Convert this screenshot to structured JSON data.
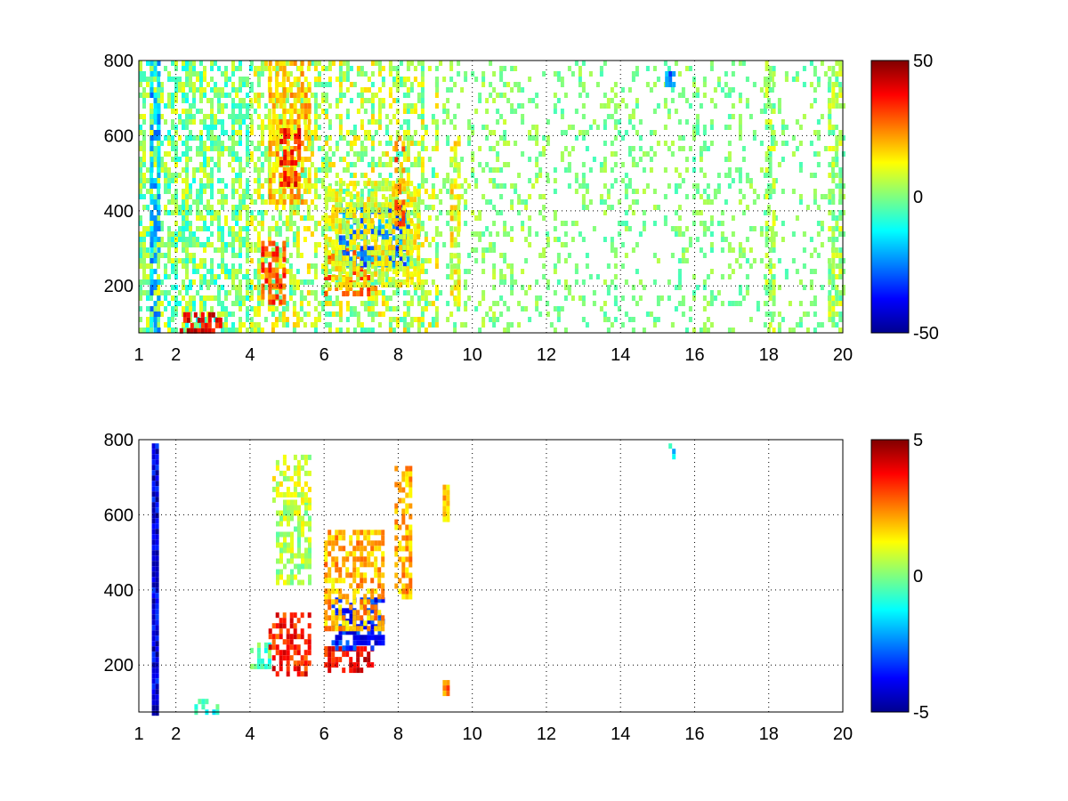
{
  "chart_data": [
    {
      "type": "heatmap",
      "title": "",
      "xlabel": "",
      "ylabel": "",
      "xlim": [
        1,
        20
      ],
      "ylim": [
        75,
        800
      ],
      "xticks": [
        1,
        2,
        4,
        6,
        8,
        10,
        12,
        14,
        16,
        18,
        20
      ],
      "yticks": [
        200,
        400,
        600,
        800
      ],
      "grid": true,
      "colormap": "jet",
      "clim": [
        -50,
        50
      ],
      "colorbar": {
        "ticks": [
          50,
          0,
          -50
        ],
        "location": "right"
      },
      "features": [
        {
          "x": [
            2.1,
            3.2
          ],
          "y": [
            75,
            130
          ],
          "value": 40
        },
        {
          "x": [
            4.3,
            4.9
          ],
          "y": [
            160,
            320
          ],
          "value": 30
        },
        {
          "x": [
            4.5,
            5.6
          ],
          "y": [
            420,
            800
          ],
          "value": 18
        },
        {
          "x": [
            4.8,
            5.3
          ],
          "y": [
            470,
            620
          ],
          "value": 35
        },
        {
          "x": [
            6.0,
            7.4
          ],
          "y": [
            180,
            300
          ],
          "value": 28
        },
        {
          "x": [
            6.4,
            8.3
          ],
          "y": [
            250,
            420
          ],
          "value": -25
        },
        {
          "x": [
            6.0,
            8.5
          ],
          "y": [
            200,
            480
          ],
          "value": 10
        },
        {
          "x": [
            7.9,
            8.1
          ],
          "y": [
            350,
            600
          ],
          "value": 25
        },
        {
          "x": [
            9.4,
            9.6
          ],
          "y": [
            150,
            600
          ],
          "value": 12
        },
        {
          "x": [
            1.3,
            1.5
          ],
          "y": [
            75,
            800
          ],
          "value": -20
        },
        {
          "x": [
            15.2,
            15.4
          ],
          "y": [
            730,
            800
          ],
          "value": -25
        },
        {
          "x": [
            17.9,
            18.1
          ],
          "y": [
            75,
            800
          ],
          "value": 3
        },
        {
          "x": [
            19.6,
            19.9
          ],
          "y": [
            75,
            800
          ],
          "value": 3
        }
      ],
      "sparse_regions": [
        {
          "x": [
            1,
            4
          ],
          "density": 0.55,
          "value_range": [
            -12,
            12
          ]
        },
        {
          "x": [
            4,
            9
          ],
          "density": 0.45,
          "value_range": [
            -8,
            18
          ]
        },
        {
          "x": [
            9,
            12
          ],
          "density": 0.22,
          "value_range": [
            -5,
            8
          ]
        },
        {
          "x": [
            12,
            20
          ],
          "density": 0.18,
          "value_range": [
            -6,
            6
          ]
        }
      ]
    },
    {
      "type": "heatmap",
      "title": "",
      "xlabel": "",
      "ylabel": "",
      "xlim": [
        1,
        20
      ],
      "ylim": [
        75,
        800
      ],
      "xticks": [
        1,
        2,
        4,
        6,
        8,
        10,
        12,
        14,
        16,
        18,
        20
      ],
      "yticks": [
        200,
        400,
        600,
        800
      ],
      "grid": true,
      "colormap": "jet",
      "clim": [
        -5,
        5
      ],
      "colorbar": {
        "ticks": [
          5,
          0,
          -5
        ],
        "location": "right"
      },
      "features": [
        {
          "x": [
            2.5,
            3.1
          ],
          "y": [
            75,
            110
          ],
          "value": -1
        },
        {
          "x": [
            4.0,
            4.5
          ],
          "y": [
            200,
            260
          ],
          "value": -0.5
        },
        {
          "x": [
            4.5,
            5.6
          ],
          "y": [
            180,
            340
          ],
          "value": 3.5
        },
        {
          "x": [
            4.7,
            5.6
          ],
          "y": [
            420,
            640
          ],
          "value": 0.5
        },
        {
          "x": [
            4.6,
            5.6
          ],
          "y": [
            640,
            760
          ],
          "value": 0.8
        },
        {
          "x": [
            6.0,
            7.3
          ],
          "y": [
            180,
            250
          ],
          "value": 3.8
        },
        {
          "x": [
            6.2,
            7.6
          ],
          "y": [
            250,
            380
          ],
          "value": -3.5
        },
        {
          "x": [
            6.0,
            7.6
          ],
          "y": [
            300,
            560
          ],
          "value": 2
        },
        {
          "x": [
            7.9,
            8.3
          ],
          "y": [
            380,
            730
          ],
          "value": 2
        },
        {
          "x": [
            9.2,
            9.3
          ],
          "y": [
            590,
            680
          ],
          "value": 1.8
        },
        {
          "x": [
            9.2,
            9.3
          ],
          "y": [
            130,
            160
          ],
          "value": 2.5
        },
        {
          "x": [
            15.2,
            15.4
          ],
          "y": [
            760,
            790
          ],
          "value": -1.5
        },
        {
          "x": [
            1.35,
            1.45
          ],
          "y": [
            75,
            790
          ],
          "value": -4
        }
      ]
    }
  ]
}
